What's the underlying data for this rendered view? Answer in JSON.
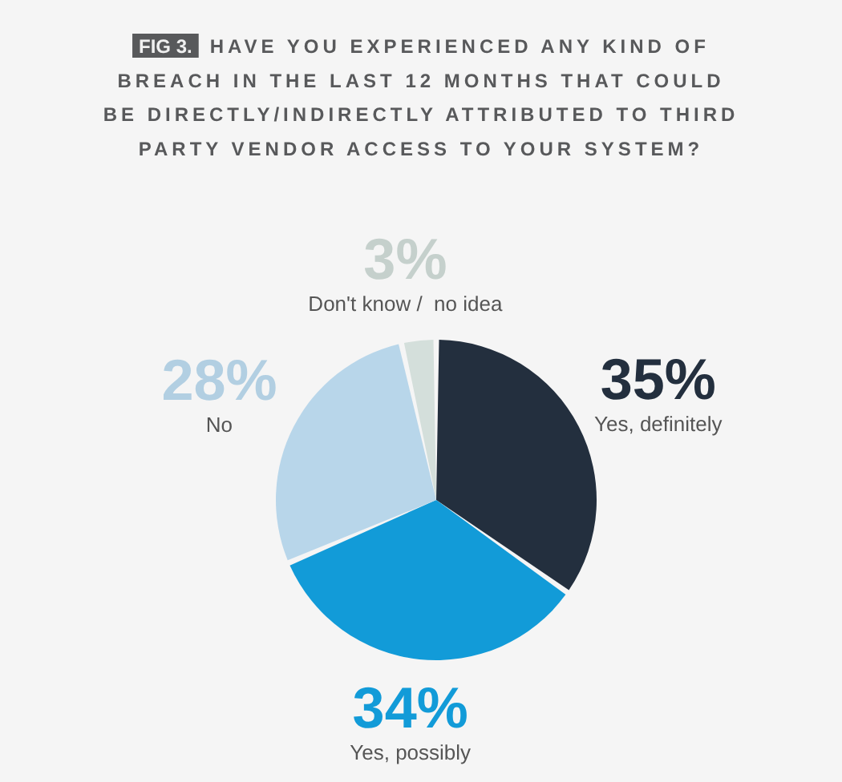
{
  "chart_data": {
    "type": "pie",
    "title": "HAVE YOU EXPERIENCED ANY KIND OF BREACH IN THE LAST 12 MONTHS THAT COULD BE DIRECTLY/INDIRECTLY ATTRIBUTED TO THIRD PARTY VENDOR ACCESS TO YOUR SYSTEM?",
    "annotations": [
      "FIG 3."
    ],
    "categories": [
      "Yes, definitely",
      "Yes, possibly",
      "No",
      "Don't know /  no idea"
    ],
    "values": [
      35,
      34,
      28,
      3
    ],
    "value_labels": [
      "35%",
      "34%",
      "28%",
      "3%"
    ],
    "colors": [
      "#232f3e",
      "#129bd8",
      "#b8d6ea",
      "#d4dfdb"
    ]
  }
}
